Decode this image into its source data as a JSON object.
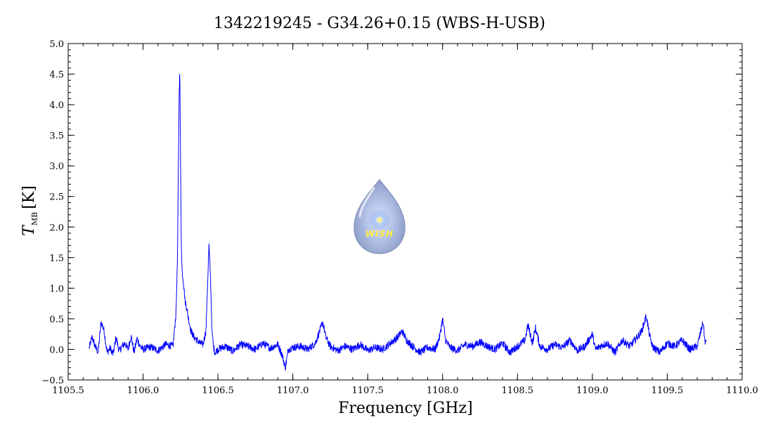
{
  "colors": {
    "series": "#0000ff",
    "axes": "#000000",
    "logo_drop": "#a9b9dc",
    "logo_text": "#ffee44"
  },
  "logo": {
    "icon": "water-drop-star-icon",
    "text": "WISH"
  },
  "chart_data": {
    "type": "line",
    "title": "1342219245 - G34.26+0.15 (WBS-H-USB)",
    "xlabel": "Frequency [GHz]",
    "ylabel_main": "T",
    "ylabel_sub": "MB",
    "ylabel_unit": "[K]",
    "xlim": [
      1105.5,
      1110.0
    ],
    "ylim": [
      -0.5,
      5.0
    ],
    "x_ticks": [
      1105.5,
      1106.0,
      1106.5,
      1107.0,
      1107.5,
      1108.0,
      1108.5,
      1109.0,
      1109.5,
      1110.0
    ],
    "x_tick_labels": [
      "1105.5",
      "1106.0",
      "1106.5",
      "1107.0",
      "1107.5",
      "1108.0",
      "1108.5",
      "1109.0",
      "1109.5",
      "1110.0"
    ],
    "y_ticks": [
      -0.5,
      0.0,
      0.5,
      1.0,
      1.5,
      2.0,
      2.5,
      3.0,
      3.5,
      4.0,
      4.5,
      5.0
    ],
    "y_tick_labels": [
      "−0.5",
      "0.0",
      "0.5",
      "1.0",
      "1.5",
      "2.0",
      "2.5",
      "3.0",
      "3.5",
      "4.0",
      "4.5",
      "5.0"
    ],
    "grid": false,
    "series": [
      {
        "x": [
          1105.64,
          1105.66,
          1105.68,
          1105.7,
          1105.72,
          1105.74,
          1105.76,
          1105.78,
          1105.8,
          1105.82,
          1105.84,
          1105.86,
          1105.88,
          1105.9,
          1105.92,
          1105.94,
          1105.96,
          1105.98,
          1106.0,
          1106.05,
          1106.1,
          1106.15,
          1106.2,
          1106.22,
          1106.23,
          1106.24,
          1106.245,
          1106.25,
          1106.255,
          1106.26,
          1106.265,
          1106.27,
          1106.28,
          1106.29,
          1106.3,
          1106.32,
          1106.34,
          1106.36,
          1106.38,
          1106.4,
          1106.42,
          1106.43,
          1106.44,
          1106.45,
          1106.46,
          1106.47,
          1106.48,
          1106.5,
          1106.55,
          1106.6,
          1106.65,
          1106.7,
          1106.75,
          1106.8,
          1106.85,
          1106.9,
          1106.93,
          1106.95,
          1106.97,
          1107.0,
          1107.05,
          1107.1,
          1107.15,
          1107.18,
          1107.2,
          1107.22,
          1107.25,
          1107.3,
          1107.35,
          1107.4,
          1107.45,
          1107.5,
          1107.55,
          1107.6,
          1107.65,
          1107.7,
          1107.73,
          1107.76,
          1107.8,
          1107.85,
          1107.9,
          1107.95,
          1107.98,
          1108.0,
          1108.02,
          1108.05,
          1108.1,
          1108.15,
          1108.2,
          1108.25,
          1108.3,
          1108.35,
          1108.4,
          1108.45,
          1108.5,
          1108.55,
          1108.57,
          1108.6,
          1108.62,
          1108.65,
          1108.7,
          1108.75,
          1108.8,
          1108.85,
          1108.9,
          1108.95,
          1109.0,
          1109.02,
          1109.05,
          1109.1,
          1109.15,
          1109.2,
          1109.25,
          1109.3,
          1109.33,
          1109.36,
          1109.38,
          1109.4,
          1109.45,
          1109.5,
          1109.55,
          1109.6,
          1109.65,
          1109.7,
          1109.72,
          1109.74,
          1109.75,
          1109.76
        ],
        "y": [
          0.02,
          0.2,
          0.05,
          -0.05,
          0.45,
          0.3,
          -0.05,
          0.02,
          -0.08,
          0.2,
          -0.03,
          0.05,
          0.1,
          0.0,
          0.22,
          -0.05,
          0.18,
          0.05,
          0.0,
          0.04,
          -0.02,
          0.08,
          0.05,
          0.6,
          1.5,
          4.0,
          4.65,
          3.2,
          1.8,
          1.3,
          1.2,
          1.1,
          0.8,
          0.7,
          0.55,
          0.3,
          0.2,
          0.15,
          0.1,
          0.08,
          0.3,
          1.0,
          1.7,
          1.2,
          0.3,
          0.05,
          -0.05,
          0.0,
          0.05,
          -0.03,
          0.08,
          0.05,
          0.0,
          0.1,
          0.02,
          0.08,
          -0.1,
          -0.3,
          0.0,
          0.03,
          0.05,
          0.0,
          0.1,
          0.3,
          0.45,
          0.2,
          0.05,
          -0.02,
          0.05,
          0.0,
          0.08,
          -0.02,
          0.03,
          0.0,
          0.1,
          0.2,
          0.3,
          0.15,
          0.05,
          -0.05,
          0.03,
          0.0,
          0.2,
          0.5,
          0.15,
          0.03,
          -0.02,
          0.08,
          0.05,
          0.12,
          0.05,
          0.0,
          0.1,
          -0.05,
          0.05,
          0.15,
          0.4,
          0.1,
          0.35,
          0.05,
          0.0,
          0.08,
          0.03,
          0.15,
          -0.02,
          0.05,
          0.25,
          0.0,
          0.05,
          0.1,
          -0.05,
          0.15,
          0.05,
          0.2,
          0.3,
          0.55,
          0.25,
          0.05,
          -0.05,
          0.1,
          0.05,
          0.15,
          0.0,
          0.05,
          0.25,
          0.45,
          0.15,
          0.1
        ]
      }
    ]
  }
}
